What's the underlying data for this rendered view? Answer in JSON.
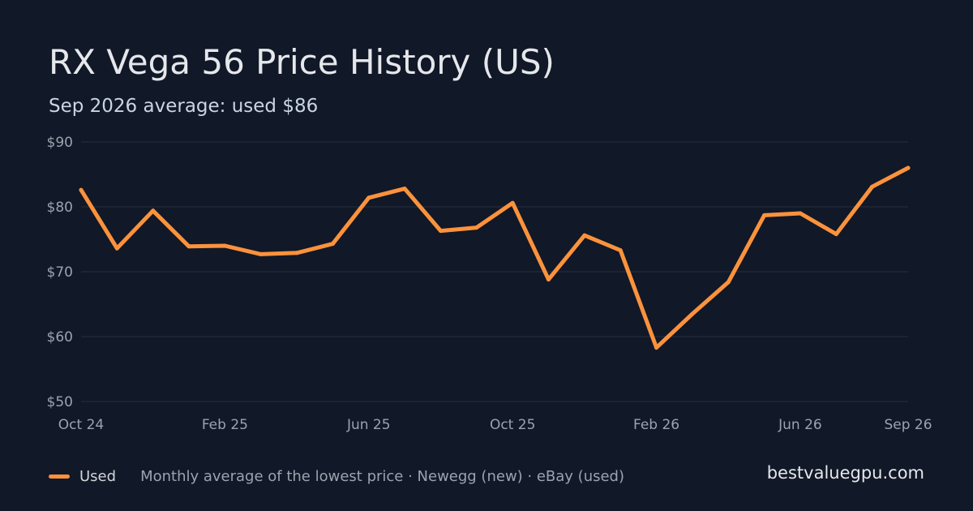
{
  "header": {
    "title": "RX Vega 56 Price History (US)",
    "subtitle": "Sep 2026 average: used $86"
  },
  "footer": {
    "legend_label": "Used",
    "note": "Monthly average of the lowest price · Newegg (new) · eBay (used)",
    "site": "bestvaluegpu.com"
  },
  "colors": {
    "background": "#111827",
    "used_line": "#fb923c",
    "grid": "#263042",
    "tick_text": "#9ca3af"
  },
  "chart_data": {
    "type": "line",
    "title": "RX Vega 56 Price History (US)",
    "subtitle": "Sep 2026 average: used $86",
    "xlabel": "",
    "ylabel": "",
    "ylim": [
      50,
      90
    ],
    "y_ticks": [
      "$50",
      "$60",
      "$70",
      "$80",
      "$90"
    ],
    "y_tick_values": [
      50,
      60,
      70,
      80,
      90
    ],
    "grid": true,
    "legend": "bottom-left",
    "x": [
      "Oct 24",
      "Nov 24",
      "Dec 24",
      "Jan 25",
      "Feb 25",
      "Mar 25",
      "Apr 25",
      "May 25",
      "Jun 25",
      "Jul 25",
      "Aug 25",
      "Sep 25",
      "Oct 25",
      "Nov 25",
      "Dec 25",
      "Jan 26",
      "Feb 26",
      "Mar 26",
      "Apr 26",
      "May 26",
      "Jun 26",
      "Jul 26",
      "Aug 26",
      "Sep 26"
    ],
    "x_tick_labels": [
      "Oct 24",
      "Feb 25",
      "Jun 25",
      "Oct 25",
      "Feb 26",
      "Jun 26",
      "Sep 26"
    ],
    "x_tick_indices": [
      0,
      4,
      8,
      12,
      16,
      20,
      23
    ],
    "series": [
      {
        "name": "Used",
        "color": "#fb923c",
        "values": [
          82.6,
          73.6,
          79.4,
          73.9,
          74.0,
          72.7,
          72.9,
          74.3,
          81.4,
          82.8,
          76.3,
          76.8,
          80.6,
          68.8,
          75.6,
          73.3,
          58.3,
          63.5,
          68.4,
          78.7,
          79.0,
          75.8,
          83.1,
          86.0
        ]
      }
    ]
  }
}
